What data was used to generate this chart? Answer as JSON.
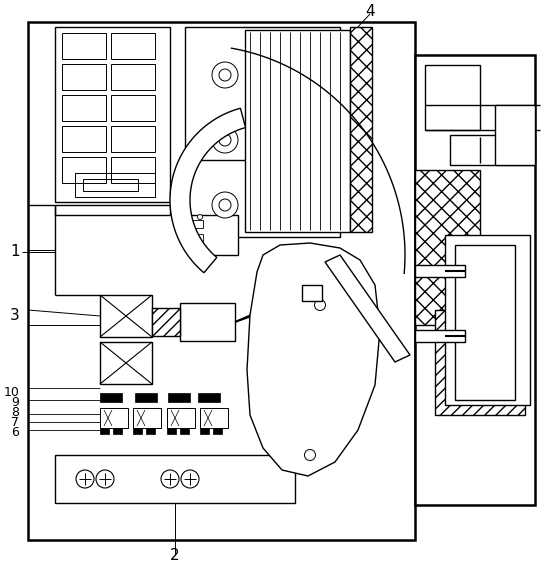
{
  "bg_color": "#ffffff",
  "line_color": "#000000",
  "lw": 1.0,
  "lw_thick": 1.8
}
